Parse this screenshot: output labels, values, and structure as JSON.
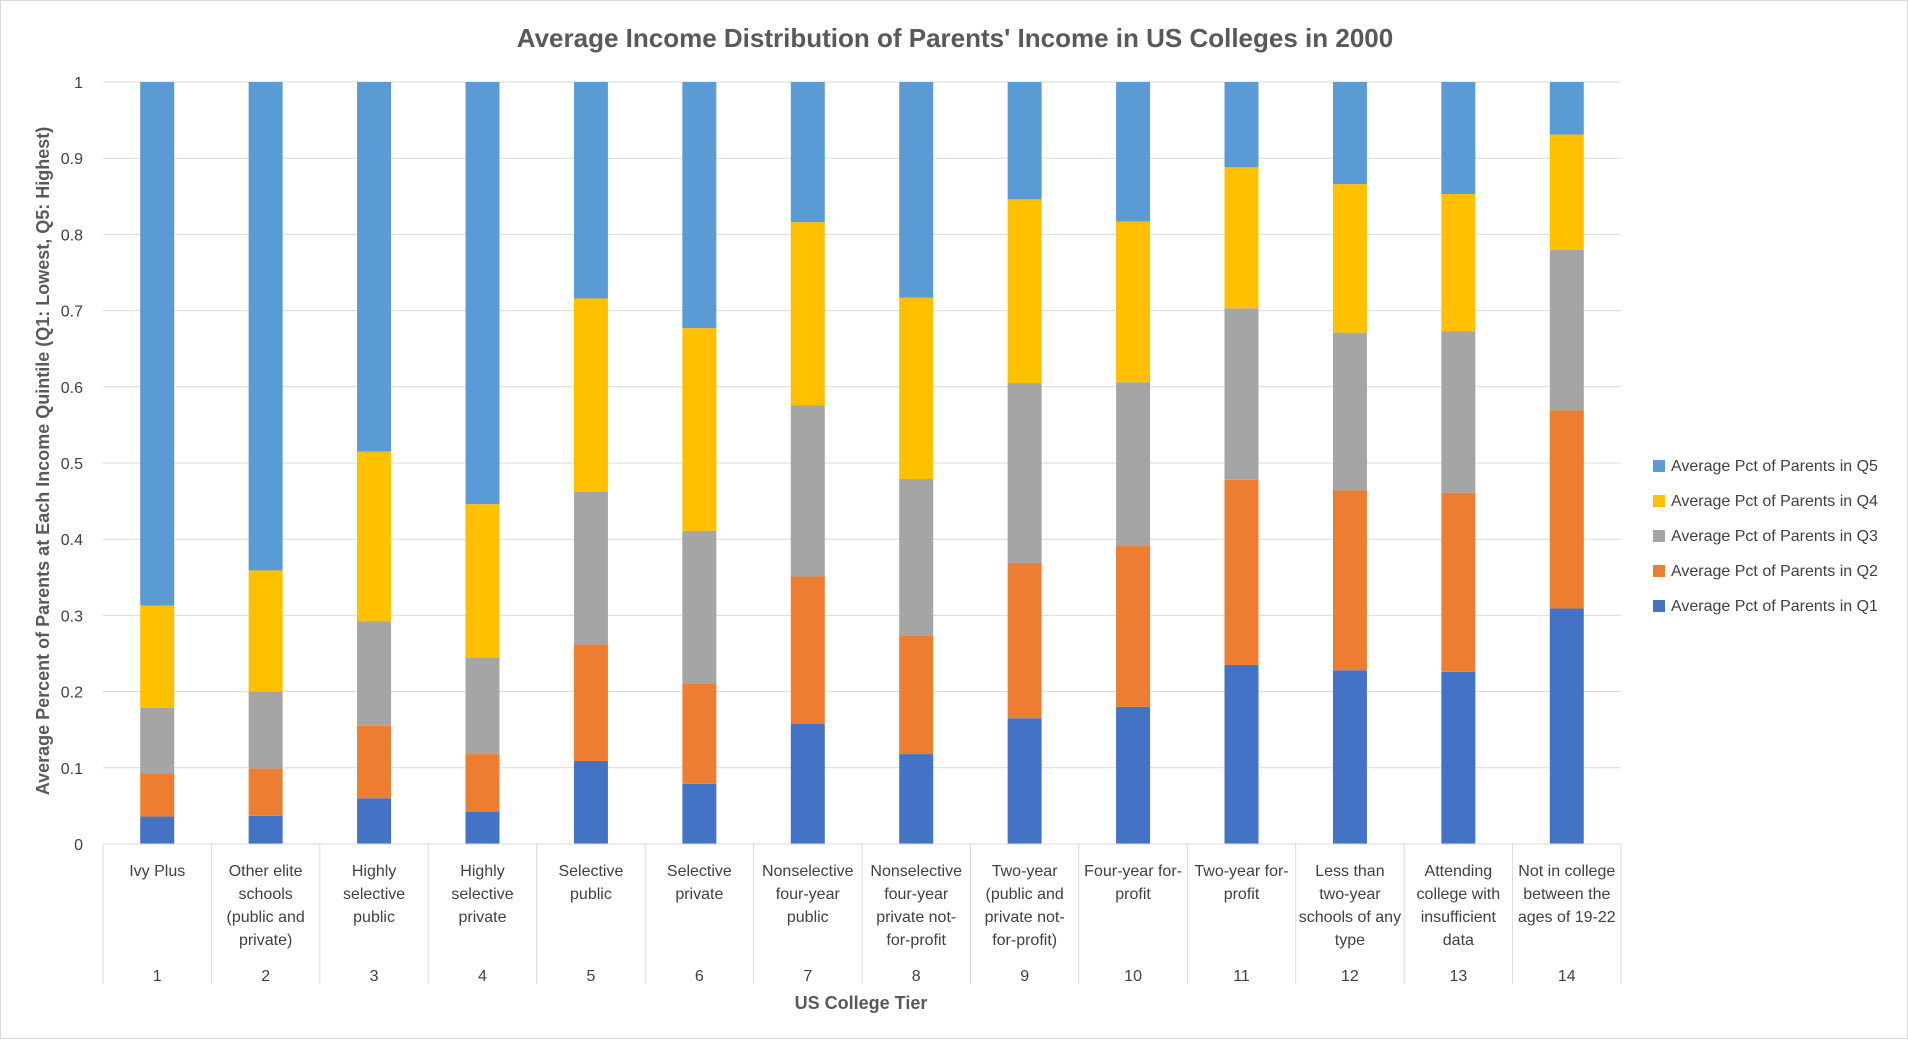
{
  "chart_data": {
    "type": "bar",
    "stacked": true,
    "title": "Average Income Distribution of Parents' Income in US Colleges in 2000",
    "xlabel": "US College Tier",
    "ylabel": "Average Percent of Parents at Each Income Quintile (Q1: Lowest, Q5: Highest)",
    "ylim": [
      0,
      1
    ],
    "yticks": [
      "0",
      "0.1",
      "0.2",
      "0.3",
      "0.4",
      "0.5",
      "0.6",
      "0.7",
      "0.8",
      "0.9",
      "1"
    ],
    "grid": true,
    "legend_position": "right",
    "categories": [
      {
        "label": [
          "Ivy Plus"
        ],
        "number": "1"
      },
      {
        "label": [
          "Other elite",
          "schools",
          "(public and",
          "private)"
        ],
        "number": "2"
      },
      {
        "label": [
          "Highly",
          "selective",
          "public"
        ],
        "number": "3"
      },
      {
        "label": [
          "Highly",
          "selective",
          "private"
        ],
        "number": "4"
      },
      {
        "label": [
          "Selective",
          "public"
        ],
        "number": "5"
      },
      {
        "label": [
          "Selective",
          "private"
        ],
        "number": "6"
      },
      {
        "label": [
          "Nonselective",
          "four-year",
          "public"
        ],
        "number": "7"
      },
      {
        "label": [
          "Nonselective",
          "four-year",
          "private not-",
          "for-profit"
        ],
        "number": "8"
      },
      {
        "label": [
          "Two-year",
          "(public and",
          "private not-",
          "for-profit)"
        ],
        "number": "9"
      },
      {
        "label": [
          "Four-year for-",
          "profit"
        ],
        "number": "10"
      },
      {
        "label": [
          "Two-year for-",
          "profit"
        ],
        "number": "11"
      },
      {
        "label": [
          "Less than",
          "two-year",
          "schools of any",
          "type"
        ],
        "number": "12"
      },
      {
        "label": [
          "Attending",
          "college with",
          "insufficient",
          "data"
        ],
        "number": "13"
      },
      {
        "label": [
          "Not in college",
          "between the",
          "ages of 19-22"
        ],
        "number": "14"
      }
    ],
    "series": [
      {
        "name": "Average Pct of Parents in Q1",
        "color": "#4472C4",
        "values": [
          0.036,
          0.037,
          0.06,
          0.042,
          0.109,
          0.079,
          0.158,
          0.118,
          0.165,
          0.18,
          0.235,
          0.228,
          0.226,
          0.309
        ]
      },
      {
        "name": "Average Pct of Parents in Q2",
        "color": "#ED7D31",
        "values": [
          0.057,
          0.062,
          0.095,
          0.076,
          0.153,
          0.132,
          0.193,
          0.155,
          0.204,
          0.211,
          0.243,
          0.236,
          0.235,
          0.26
        ]
      },
      {
        "name": "Average Pct of Parents in Q3",
        "color": "#A5A5A5",
        "values": [
          0.086,
          0.101,
          0.137,
          0.127,
          0.2,
          0.2,
          0.225,
          0.206,
          0.236,
          0.215,
          0.225,
          0.207,
          0.212,
          0.211
        ]
      },
      {
        "name": "Average Pct of Parents in Q4",
        "color": "#FFC000",
        "values": [
          0.134,
          0.159,
          0.223,
          0.201,
          0.254,
          0.266,
          0.24,
          0.238,
          0.241,
          0.211,
          0.185,
          0.195,
          0.18,
          0.151
        ]
      },
      {
        "name": "Average Pct of Parents in Q5",
        "color": "#5B9BD5",
        "values": [
          0.687,
          0.641,
          0.485,
          0.554,
          0.284,
          0.323,
          0.184,
          0.283,
          0.154,
          0.183,
          0.112,
          0.134,
          0.147,
          0.069
        ]
      }
    ],
    "legend_order": [
      4,
      3,
      2,
      1,
      0
    ]
  }
}
